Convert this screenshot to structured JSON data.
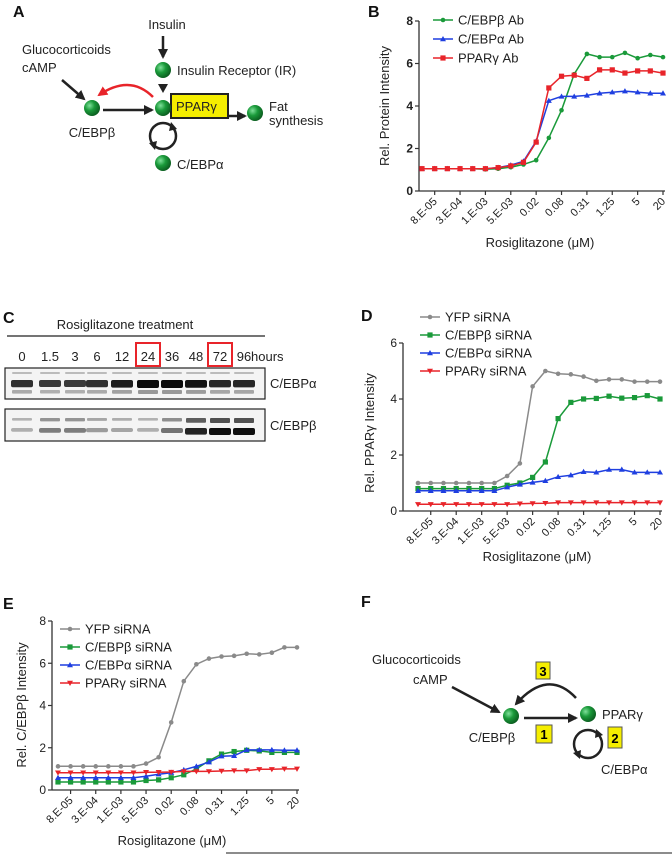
{
  "panel_labels": {
    "a": "A",
    "b": "B",
    "c": "C",
    "d": "D",
    "e": "E",
    "f": "F"
  },
  "panel_a": {
    "insulin": "Insulin",
    "insulin_receptor": "Insulin Receptor (IR)",
    "glucocorticoids": "Glucocorticoids",
    "camp": "cAMP",
    "cebpb": "C/EBPβ",
    "ppar": "PPARγ",
    "fat": "Fat",
    "synthesis": "synthesis",
    "cebpa": "C/EBPα"
  },
  "panel_c": {
    "title": "Rosiglitazone treatment",
    "lanes": [
      "0",
      "1.5",
      "3",
      "6",
      "12",
      "24",
      "36",
      "48",
      "72",
      "96"
    ],
    "highlighted_lanes": [
      "24",
      "72"
    ],
    "unit": "hours",
    "blots": [
      {
        "label": "C/EBPα",
        "intensity": [
          0.8,
          0.75,
          0.75,
          0.8,
          0.9,
          1.0,
          1.0,
          0.95,
          0.85,
          0.85
        ]
      },
      {
        "label": "C/EBPβ",
        "intensity": [
          0.2,
          0.45,
          0.45,
          0.3,
          0.25,
          0.2,
          0.5,
          0.9,
          1.0,
          1.0
        ]
      }
    ]
  },
  "panel_f": {
    "glucocorticoids": "Glucocorticoids",
    "camp": "cAMP",
    "cebpb": "C/EBPβ",
    "ppar": "PPARγ",
    "cebpa": "C/EBPα",
    "step1": "1",
    "step2": "2",
    "step3": "3"
  },
  "chart_data": [
    {
      "id": "B",
      "type": "line",
      "xlabel": "Rosiglitazone (μM)",
      "ylabel": "Rel. Protein Intensity",
      "ylim": [
        0,
        8
      ],
      "yticks": [
        "0",
        "2",
        "4",
        "6",
        "8"
      ],
      "xtick_labels": [
        "8.E-05",
        "3.E-04",
        "1.E-03",
        "5.E-03",
        "0.02",
        "0.08",
        "0.31",
        "1.25",
        "5",
        "20"
      ],
      "legend_position": "top-left",
      "series": [
        {
          "name": "C/EBPβ Ab",
          "color": "#1a9a3a",
          "marker": "circle",
          "values": [
            1.05,
            1.05,
            1.05,
            1.05,
            1.05,
            1.02,
            1.05,
            1.12,
            1.25,
            1.45,
            2.5,
            3.8,
            5.5,
            6.45,
            6.3,
            6.3,
            6.5,
            6.25,
            6.4,
            6.3
          ]
        },
        {
          "name": "C/EBPα Ab",
          "color": "#1f3fe0",
          "marker": "triangle",
          "values": [
            1.05,
            1.05,
            1.05,
            1.05,
            1.05,
            1.05,
            1.1,
            1.22,
            1.4,
            2.35,
            4.25,
            4.45,
            4.45,
            4.5,
            4.6,
            4.65,
            4.7,
            4.65,
            4.6,
            4.6
          ]
        },
        {
          "name": "PPARγ Ab",
          "color": "#e8242a",
          "marker": "square",
          "values": [
            1.05,
            1.05,
            1.05,
            1.05,
            1.05,
            1.05,
            1.1,
            1.18,
            1.35,
            2.3,
            4.85,
            5.4,
            5.45,
            5.3,
            5.7,
            5.7,
            5.55,
            5.65,
            5.65,
            5.55
          ]
        }
      ]
    },
    {
      "id": "D",
      "type": "line",
      "xlabel": "Rosiglitazone (μM)",
      "ylabel": "Rel. PPARγ  Intensity",
      "ylim": [
        0,
        6
      ],
      "yticks": [
        "0",
        "2",
        "4",
        "6"
      ],
      "xtick_labels": [
        "8.E-05",
        "3.E-04",
        "1.E-03",
        "5.E-03",
        "0.02",
        "0.08",
        "0.31",
        "1.25",
        "5",
        "20"
      ],
      "legend_position": "top-left",
      "series": [
        {
          "name": "YFP siRNA",
          "color": "#8a8a8a",
          "marker": "circle",
          "values": [
            1.0,
            1.0,
            1.0,
            1.0,
            1.0,
            1.0,
            1.0,
            1.25,
            1.7,
            4.45,
            5.0,
            4.9,
            4.88,
            4.8,
            4.65,
            4.7,
            4.7,
            4.62,
            4.62,
            4.62
          ]
        },
        {
          "name": "C/EBPβ siRNA",
          "color": "#1a9a3a",
          "marker": "square",
          "values": [
            0.8,
            0.8,
            0.8,
            0.8,
            0.8,
            0.8,
            0.8,
            0.92,
            1.0,
            1.2,
            1.75,
            3.3,
            3.88,
            4.0,
            4.02,
            4.1,
            4.03,
            4.05,
            4.12,
            4.0
          ]
        },
        {
          "name": "C/EBPα siRNA",
          "color": "#1f3fe0",
          "marker": "triangle",
          "values": [
            0.72,
            0.72,
            0.72,
            0.72,
            0.72,
            0.72,
            0.72,
            0.85,
            0.95,
            1.02,
            1.08,
            1.22,
            1.28,
            1.4,
            1.38,
            1.48,
            1.48,
            1.38,
            1.38,
            1.38
          ]
        },
        {
          "name": "PPARγ siRNA",
          "color": "#e8242a",
          "marker": "triangle-down",
          "values": [
            0.24,
            0.24,
            0.24,
            0.24,
            0.24,
            0.24,
            0.24,
            0.24,
            0.26,
            0.27,
            0.28,
            0.3,
            0.3,
            0.3,
            0.3,
            0.3,
            0.3,
            0.3,
            0.3,
            0.3
          ]
        }
      ]
    },
    {
      "id": "E",
      "type": "line",
      "xlabel": "Rosiglitazone (μM)",
      "ylabel": "Rel. C/EBPβ Intensity",
      "ylim": [
        0,
        8
      ],
      "yticks": [
        "0",
        "2",
        "4",
        "6",
        "8"
      ],
      "xtick_labels": [
        "8.E-05",
        "3.E-04",
        "1.E-03",
        "5.E-03",
        "0.02",
        "0.08",
        "0.31",
        "1.25",
        "5",
        "20"
      ],
      "legend_position": "top-left",
      "series": [
        {
          "name": "YFP siRNA",
          "color": "#8a8a8a",
          "marker": "circle",
          "values": [
            1.12,
            1.12,
            1.12,
            1.12,
            1.12,
            1.12,
            1.12,
            1.25,
            1.55,
            3.2,
            5.15,
            5.95,
            6.22,
            6.32,
            6.35,
            6.45,
            6.42,
            6.5,
            6.75,
            6.75
          ]
        },
        {
          "name": "C/EBPβ siRNA",
          "color": "#1a9a3a",
          "marker": "square",
          "values": [
            0.38,
            0.38,
            0.38,
            0.38,
            0.38,
            0.38,
            0.38,
            0.45,
            0.48,
            0.58,
            0.72,
            1.0,
            1.38,
            1.7,
            1.82,
            1.88,
            1.85,
            1.78,
            1.78,
            1.78
          ]
        },
        {
          "name": "C/EBPα siRNA",
          "color": "#1f3fe0",
          "marker": "triangle",
          "values": [
            0.58,
            0.58,
            0.58,
            0.58,
            0.58,
            0.58,
            0.58,
            0.65,
            0.75,
            0.82,
            0.95,
            1.12,
            1.32,
            1.6,
            1.62,
            1.9,
            1.9,
            1.9,
            1.88,
            1.88
          ]
        },
        {
          "name": "PPARγ siRNA",
          "color": "#e8242a",
          "marker": "triangle-down",
          "values": [
            0.82,
            0.82,
            0.82,
            0.82,
            0.82,
            0.82,
            0.82,
            0.84,
            0.84,
            0.85,
            0.88,
            0.88,
            0.88,
            0.9,
            0.92,
            0.92,
            0.98,
            0.98,
            1.0,
            1.0
          ]
        }
      ]
    }
  ]
}
